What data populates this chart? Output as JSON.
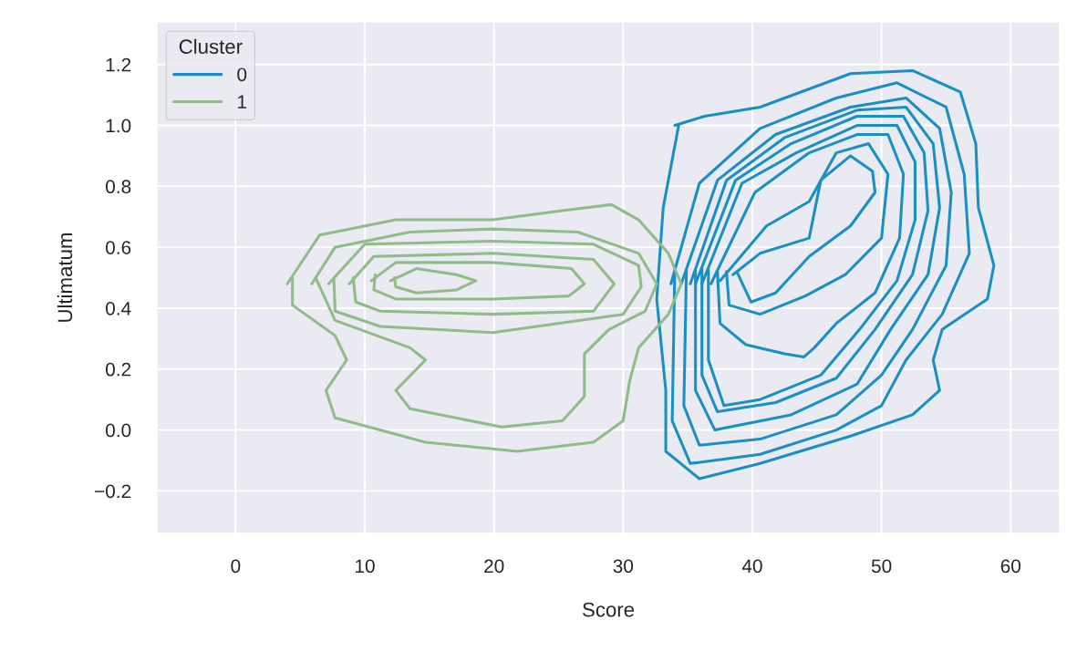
{
  "chart_data": {
    "type": "line",
    "xlabel": "Score",
    "ylabel": "Ultimatum",
    "legend_title": "Cluster",
    "legend": "top left",
    "grid": true,
    "xlim": [
      -6.1,
      63.8
    ],
    "ylim": [
      -0.34,
      1.34
    ],
    "xticks": [
      0,
      10,
      20,
      30,
      40,
      50,
      60
    ],
    "yticks": [
      {
        "value": -0.2,
        "label": "−0.2"
      },
      {
        "value": 0.0,
        "label": "0.0"
      },
      {
        "value": 0.2,
        "label": "0.2"
      },
      {
        "value": 0.4,
        "label": "0.4"
      },
      {
        "value": 0.6,
        "label": "0.6"
      },
      {
        "value": 0.8,
        "label": "0.8"
      },
      {
        "value": 1.0,
        "label": "1.0"
      },
      {
        "value": 1.2,
        "label": "1.2"
      }
    ],
    "series": [
      {
        "name": "0",
        "color": "#1a8fc4",
        "x": [
          34.0,
          36.3,
          40.6,
          47.6,
          52.4,
          56.1,
          57.3,
          57.5,
          58.7,
          58.2,
          54.7,
          54.0,
          54.5,
          52.4,
          47.6,
          40.6,
          35.9,
          33.3,
          33.3,
          32.6,
          33.1,
          34.3
        ],
        "values": [
          1.0,
          1.03,
          1.06,
          1.17,
          1.18,
          1.11,
          0.94,
          0.73,
          0.54,
          0.43,
          0.33,
          0.23,
          0.13,
          0.05,
          -0.02,
          -0.11,
          -0.16,
          -0.07,
          0.13,
          0.43,
          0.73,
          1.0
        ]
      },
      {
        "color": "#1a8fc4",
        "x": [
          33.7,
          35.9,
          40.6,
          46.5,
          51.2,
          55.0,
          56.4,
          56.8,
          54.7,
          51.9,
          50.0,
          46.5,
          40.6,
          35.2,
          33.8,
          34.0
        ],
        "values": [
          0.48,
          0.81,
          0.99,
          1.09,
          1.14,
          1.06,
          0.84,
          0.58,
          0.38,
          0.23,
          0.08,
          0.0,
          -0.08,
          -0.11,
          0.03,
          0.53
        ]
      },
      {
        "color": "#1a8fc4",
        "x": [
          34.5,
          37.3,
          41.8,
          47.6,
          51.9,
          54.5,
          55.4,
          55.0,
          52.4,
          50.0,
          46.5,
          40.6,
          35.9,
          34.7,
          34.9
        ],
        "values": [
          0.48,
          0.82,
          0.97,
          1.06,
          1.09,
          0.99,
          0.78,
          0.54,
          0.33,
          0.18,
          0.05,
          -0.03,
          -0.05,
          0.08,
          0.53
        ]
      },
      {
        "color": "#1a8fc4",
        "x": [
          35.2,
          38.0,
          42.5,
          48.1,
          51.9,
          54.0,
          54.5,
          53.6,
          50.7,
          48.1,
          43.0,
          37.1,
          35.6,
          35.6
        ],
        "values": [
          0.48,
          0.82,
          0.96,
          1.05,
          1.06,
          0.94,
          0.73,
          0.51,
          0.33,
          0.15,
          0.05,
          0.0,
          0.13,
          0.53
        ]
      },
      {
        "color": "#1a8fc4",
        "x": [
          35.6,
          38.7,
          43.0,
          48.1,
          51.7,
          53.3,
          53.6,
          52.4,
          49.5,
          46.5,
          41.8,
          37.3,
          36.1,
          36.1
        ],
        "values": [
          0.48,
          0.82,
          0.94,
          1.03,
          1.03,
          0.91,
          0.72,
          0.51,
          0.33,
          0.17,
          0.09,
          0.06,
          0.18,
          0.53
        ]
      },
      {
        "color": "#1a8fc4",
        "x": [
          36.1,
          39.2,
          43.4,
          48.1,
          51.2,
          52.6,
          52.6,
          51.2,
          48.3,
          45.3,
          40.6,
          37.8,
          36.6,
          36.6
        ],
        "values": [
          0.48,
          0.81,
          0.91,
          1.0,
          1.0,
          0.88,
          0.69,
          0.49,
          0.33,
          0.18,
          0.1,
          0.08,
          0.23,
          0.53
        ]
      },
      {
        "color": "#1a8fc4",
        "x": [
          36.8,
          40.2,
          44.4,
          48.1,
          50.5,
          51.7,
          51.4,
          49.5,
          46.5,
          44.8,
          44.0,
          42.5,
          39.5,
          37.5,
          37.3
        ],
        "values": [
          0.48,
          0.78,
          0.91,
          0.97,
          0.97,
          0.84,
          0.63,
          0.45,
          0.35,
          0.27,
          0.24,
          0.25,
          0.28,
          0.35,
          0.52
        ]
      },
      {
        "color": "#1a8fc4",
        "x": [
          37.5,
          41.1,
          44.4,
          46.5,
          49.0,
          50.5,
          50.0,
          47.2,
          44.1,
          40.6,
          38.2,
          38.0
        ],
        "values": [
          0.49,
          0.67,
          0.75,
          0.91,
          0.94,
          0.84,
          0.63,
          0.51,
          0.44,
          0.38,
          0.41,
          0.52
        ]
      },
      {
        "color": "#1a8fc4",
        "x": [
          38.5,
          40.6,
          44.4,
          45.3,
          47.6,
          49.3,
          49.5,
          47.6,
          44.4,
          41.8,
          39.9,
          38.8
        ],
        "values": [
          0.51,
          0.58,
          0.63,
          0.82,
          0.9,
          0.85,
          0.78,
          0.67,
          0.57,
          0.45,
          0.42,
          0.52
        ]
      },
      {
        "name": "1",
        "color": "#8fbc8a",
        "x": [
          4.0,
          6.5,
          12.4,
          19.9,
          25.3,
          29.1,
          31.2,
          33.5,
          34.5,
          33.5,
          31.2,
          30.5,
          30.0,
          27.7,
          21.8,
          14.7,
          7.7,
          7.0,
          8.6,
          7.7,
          4.4,
          4.4
        ],
        "values": [
          0.48,
          0.64,
          0.69,
          0.69,
          0.72,
          0.74,
          0.69,
          0.58,
          0.48,
          0.38,
          0.27,
          0.16,
          0.03,
          -0.04,
          -0.07,
          -0.04,
          0.04,
          0.13,
          0.23,
          0.31,
          0.41,
          0.5
        ]
      },
      {
        "color": "#8fbc8a",
        "x": [
          5.9,
          7.7,
          13.5,
          19.9,
          26.5,
          31.2,
          32.6,
          31.7,
          28.9,
          27.0,
          27.0,
          25.3,
          20.6,
          13.5,
          12.4,
          14.7,
          13.5,
          7.7,
          6.2
        ],
        "values": [
          0.48,
          0.6,
          0.65,
          0.66,
          0.65,
          0.58,
          0.48,
          0.39,
          0.33,
          0.25,
          0.11,
          0.03,
          0.01,
          0.07,
          0.13,
          0.23,
          0.27,
          0.36,
          0.5
        ]
      },
      {
        "color": "#8fbc8a",
        "x": [
          7.2,
          10.0,
          19.9,
          27.7,
          31.2,
          31.4,
          30.0,
          19.9,
          11.2,
          7.7,
          7.6
        ],
        "values": [
          0.48,
          0.61,
          0.62,
          0.61,
          0.54,
          0.47,
          0.38,
          0.32,
          0.34,
          0.39,
          0.5
        ]
      },
      {
        "color": "#8fbc8a",
        "x": [
          8.8,
          10.7,
          19.9,
          27.7,
          29.3,
          27.7,
          19.9,
          11.2,
          9.3,
          9.1
        ],
        "values": [
          0.48,
          0.57,
          0.58,
          0.56,
          0.48,
          0.39,
          0.38,
          0.39,
          0.42,
          0.5
        ]
      },
      {
        "color": "#8fbc8a",
        "x": [
          10.5,
          12.4,
          19.9,
          26.0,
          27.0,
          25.8,
          19.9,
          12.4,
          10.7,
          10.8
        ],
        "values": [
          0.49,
          0.55,
          0.55,
          0.53,
          0.48,
          0.44,
          0.43,
          0.43,
          0.46,
          0.51
        ]
      },
      {
        "color": "#8fbc8a",
        "x": [
          12.0,
          14.0,
          17.1,
          18.6,
          17.1,
          14.0,
          12.4,
          12.3
        ],
        "values": [
          0.49,
          0.53,
          0.51,
          0.49,
          0.46,
          0.45,
          0.47,
          0.5
        ]
      }
    ]
  }
}
